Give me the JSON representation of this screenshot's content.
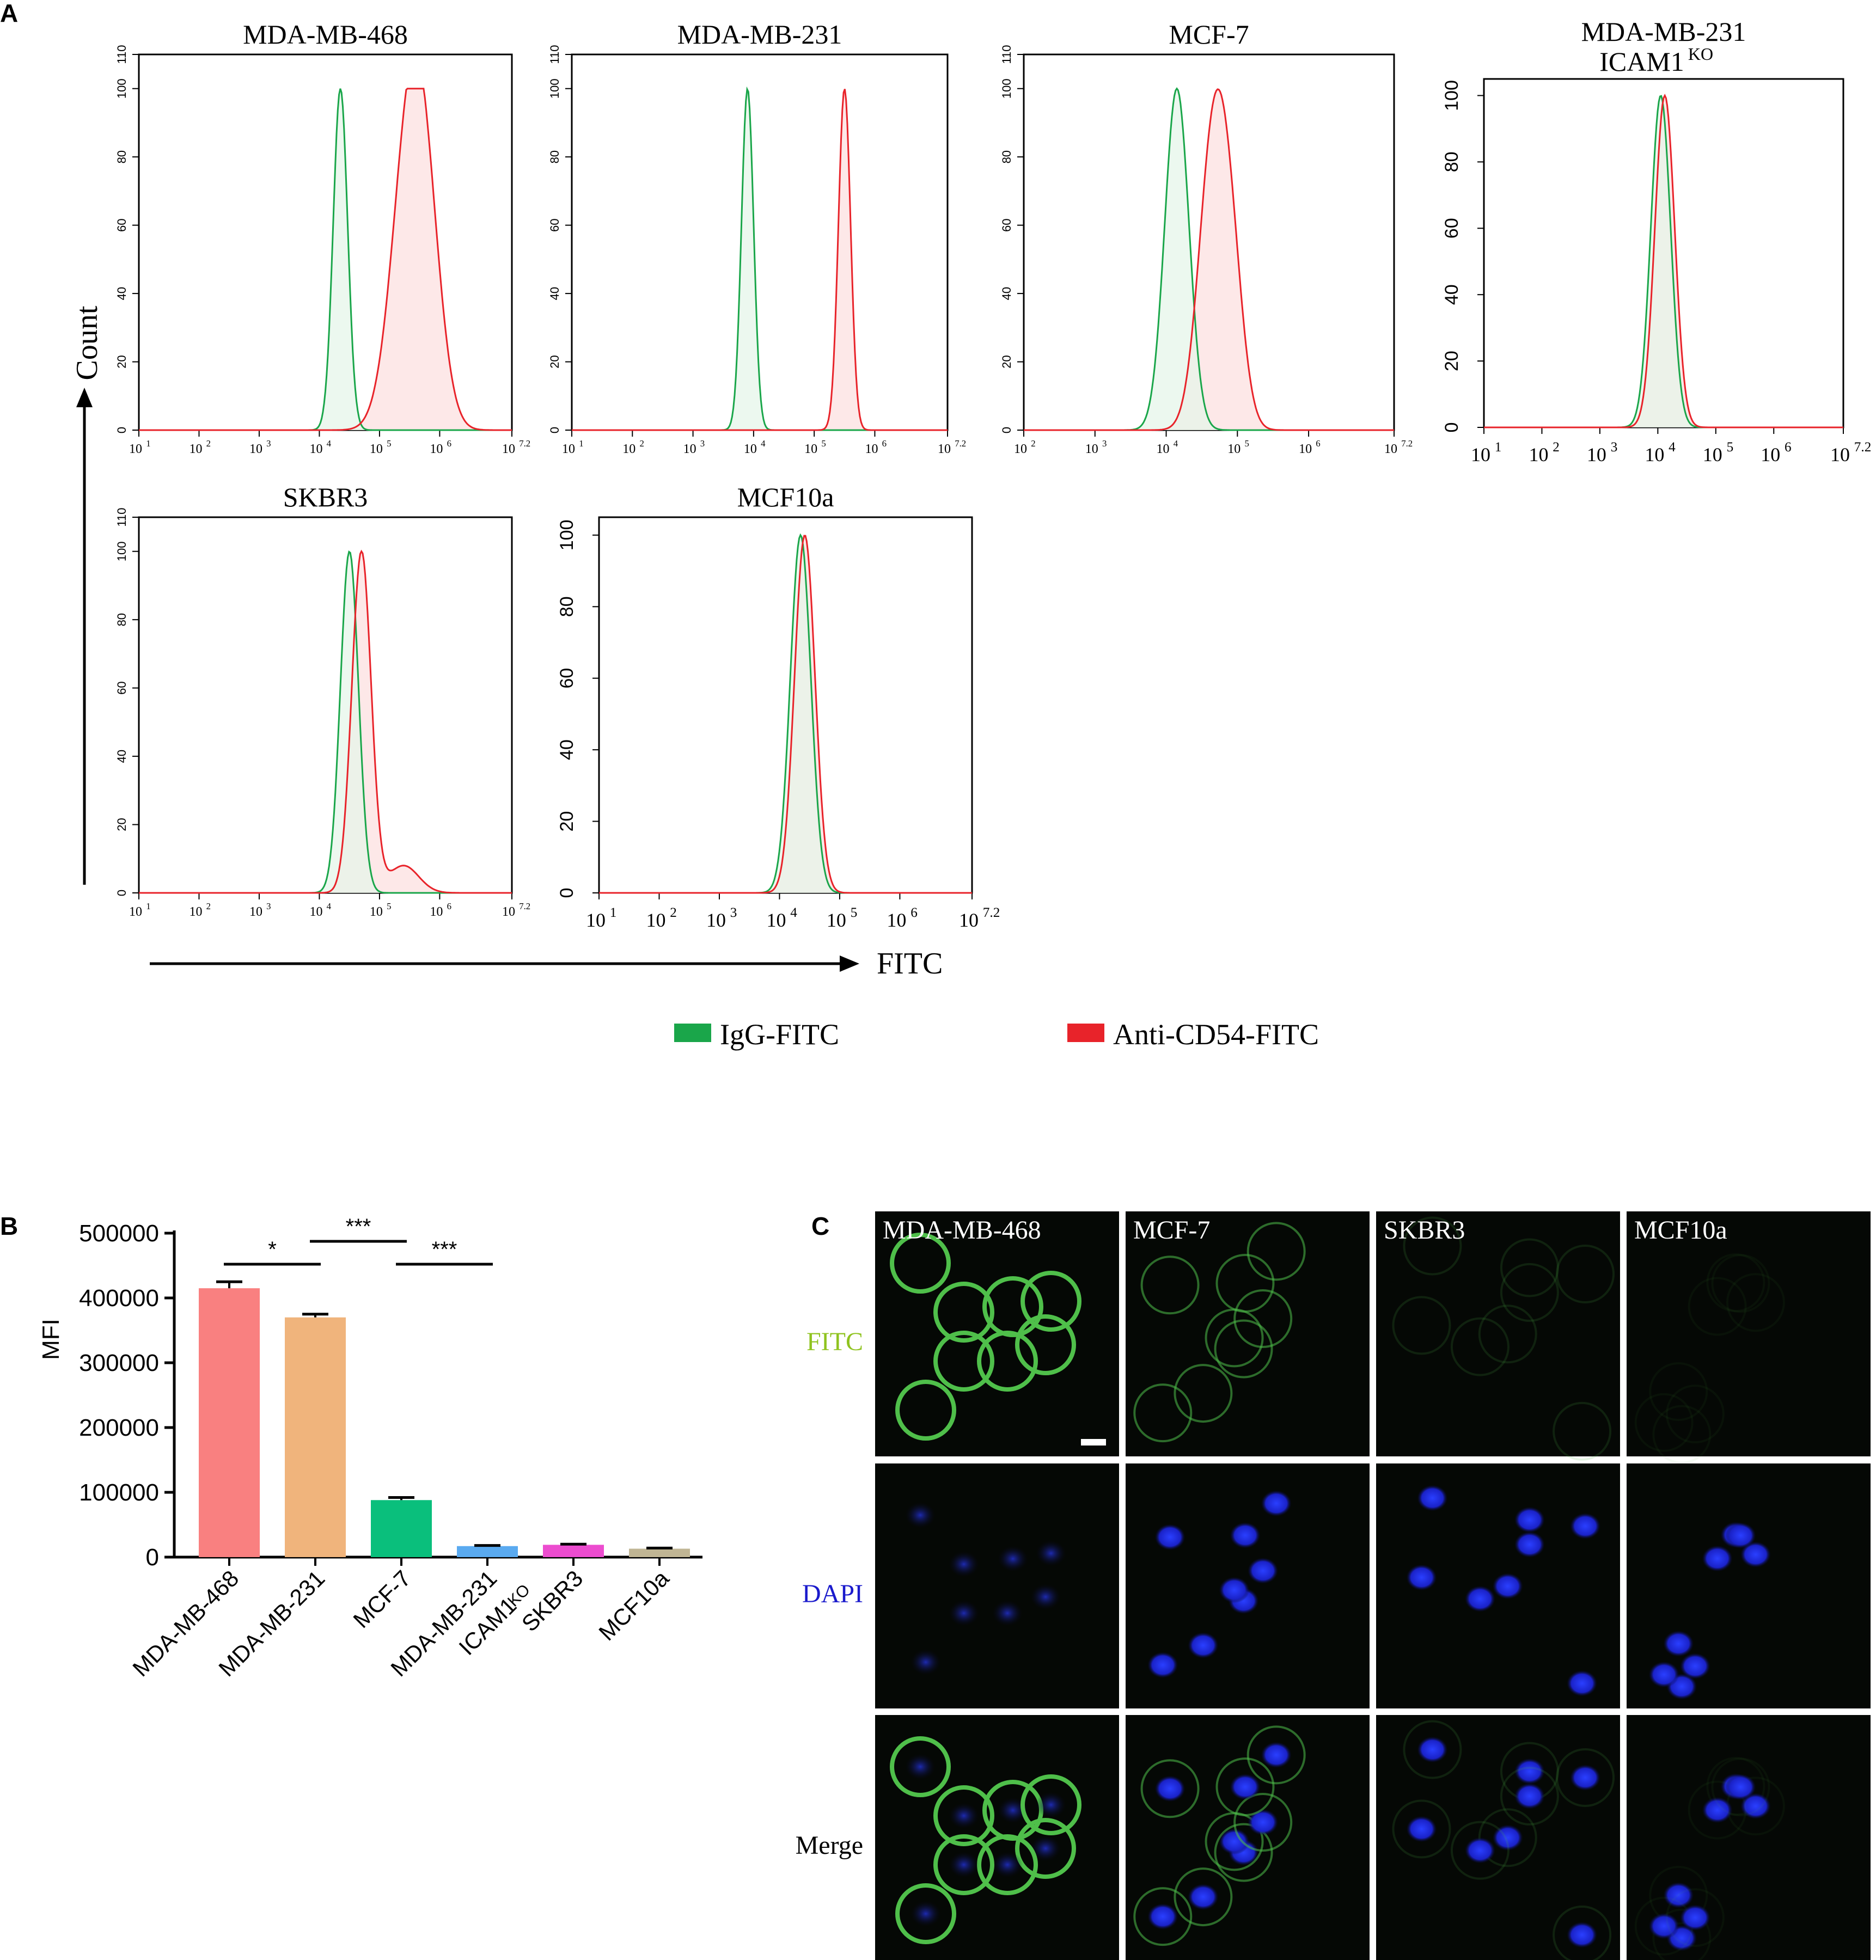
{
  "panel_labels": {
    "a": "A",
    "b": "B",
    "c": "C"
  },
  "colors": {
    "igg": "#1aa64a",
    "igg_fill": "#e6f5ea",
    "anti": "#e8232a",
    "anti_fill": "#fde4e4",
    "overlap_fill": "#e6d8cf",
    "axis": "#000000"
  },
  "histograms": {
    "common_axis_labels": {
      "y": "Count",
      "x": "FITC"
    },
    "legend": [
      {
        "label": "IgG-FITC",
        "color": "#1aa64a"
      },
      {
        "label": "Anti-CD54-FITC",
        "color": "#e8232a"
      }
    ],
    "panels": [
      {
        "title": "MDA-MB-468",
        "title_line2": "",
        "y_ticks": [
          "0",
          "20",
          "40",
          "60",
          "80",
          "100",
          "110"
        ],
        "x_ticks": [
          "10",
          "10",
          "10",
          "10",
          "10",
          "10",
          "10"
        ],
        "x_tick_exps": [
          "1",
          "2",
          "3",
          "4",
          "5",
          "6",
          "7.2"
        ],
        "igg_peak_log10": 4.35,
        "igg_width": 0.12,
        "anti_peak_log10": 5.5,
        "anti_width": 0.3,
        "anti_shape": "broad"
      },
      {
        "title": "MDA-MB-231",
        "title_line2": "",
        "y_ticks": [
          "0",
          "20",
          "40",
          "60",
          "80",
          "100",
          "110"
        ],
        "x_ticks": [
          "10",
          "10",
          "10",
          "10",
          "10",
          "10",
          "10"
        ],
        "x_tick_exps": [
          "1",
          "2",
          "3",
          "4",
          "5",
          "6",
          "7.2"
        ],
        "igg_peak_log10": 3.9,
        "igg_width": 0.1,
        "anti_peak_log10": 5.5,
        "anti_width": 0.1,
        "anti_shape": "narrow"
      },
      {
        "title": "MCF-7",
        "title_line2": "",
        "y_ticks": [
          "0",
          "20",
          "40",
          "60",
          "80",
          "100",
          "110"
        ],
        "x_ticks": [
          "10",
          "10",
          "10",
          "10",
          "10",
          "10"
        ],
        "x_tick_exps": [
          "2",
          "3",
          "4",
          "5",
          "6",
          "7.2"
        ],
        "igg_peak_log10": 4.15,
        "igg_width": 0.17,
        "anti_peak_log10": 4.65,
        "anti_width": 0.2,
        "anti_shape": "broad"
      },
      {
        "title": "MDA-MB-231",
        "title_line2": "ICAM1",
        "title_line2_sup": "KO",
        "y_ticks": [
          "0",
          "20",
          "40",
          "60",
          "80",
          "100"
        ],
        "x_ticks": [
          "10",
          "10",
          "10",
          "10",
          "10",
          "10",
          "10"
        ],
        "x_tick_exps": [
          "1",
          "2",
          "3",
          "4",
          "5",
          "6",
          "7.2"
        ],
        "igg_peak_log10": 4.05,
        "igg_width": 0.17,
        "anti_peak_log10": 4.12,
        "anti_width": 0.17,
        "anti_shape": "narrow"
      },
      {
        "title": "SKBR3",
        "title_line2": "",
        "y_ticks": [
          "0",
          "20",
          "40",
          "60",
          "80",
          "100",
          "110"
        ],
        "x_ticks": [
          "10",
          "10",
          "10",
          "10",
          "10",
          "10",
          "10"
        ],
        "x_tick_exps": [
          "1",
          "2",
          "3",
          "4",
          "5",
          "6",
          "7.2"
        ],
        "igg_peak_log10": 4.5,
        "igg_width": 0.15,
        "anti_peak_log10": 4.7,
        "anti_width": 0.16,
        "anti_shape": "tail"
      },
      {
        "title": "MCF10a",
        "title_line2": "",
        "y_ticks": [
          "0",
          "20",
          "40",
          "60",
          "80",
          "100"
        ],
        "x_ticks": [
          "10",
          "10",
          "10",
          "10",
          "10",
          "10",
          "10"
        ],
        "x_tick_exps": [
          "1",
          "2",
          "3",
          "4",
          "5",
          "6",
          "7.2"
        ],
        "igg_peak_log10": 4.35,
        "igg_width": 0.17,
        "anti_peak_log10": 4.42,
        "anti_width": 0.17,
        "anti_shape": "narrow"
      }
    ]
  },
  "chart_data": {
    "type": "bar",
    "categories": [
      "MDA-MB-468",
      "MDA-MB-231",
      "MCF-7",
      "MDA-MB-231 ICAM1KO",
      "SKBR3",
      "MCF10a"
    ],
    "category_labels": [
      {
        "line1": "MDA-MB-468",
        "line2": "",
        "sup": ""
      },
      {
        "line1": "MDA-MB-231",
        "line2": "",
        "sup": ""
      },
      {
        "line1": "MCF-7",
        "line2": "",
        "sup": ""
      },
      {
        "line1": "MDA-MB-231",
        "line2": "ICAM1",
        "sup": "KO"
      },
      {
        "line1": "SKBR3",
        "line2": "",
        "sup": ""
      },
      {
        "line1": "MCF10a",
        "line2": "",
        "sup": ""
      }
    ],
    "values": [
      415000,
      370000,
      88000,
      17000,
      19000,
      13000
    ],
    "errors": [
      10000,
      5000,
      4000,
      1000,
      1000,
      1000
    ],
    "bar_colors": [
      "#f98080",
      "#f0b47c",
      "#0abf7c",
      "#5aaaf0",
      "#ec4ccf",
      "#c0b594"
    ],
    "ylabel": "MFI",
    "ylim": [
      0,
      500000
    ],
    "y_ticks": [
      "0",
      "100000",
      "200000",
      "300000",
      "400000",
      "500000"
    ],
    "significance": [
      {
        "from": 0,
        "to": 1,
        "label": "*"
      },
      {
        "from": 1,
        "to": 2,
        "label": "***"
      },
      {
        "from": 2,
        "to": 3,
        "label": "***"
      }
    ]
  },
  "microscopy": {
    "columns": [
      "MDA-MB-468",
      "MCF-7",
      "SKBR3",
      "MCF10a"
    ],
    "rows": [
      {
        "label": "FITC",
        "color": "#8fc31f"
      },
      {
        "label": "DAPI",
        "color": "#1a1acc"
      },
      {
        "label": "Merge",
        "color": "#000000"
      }
    ]
  }
}
